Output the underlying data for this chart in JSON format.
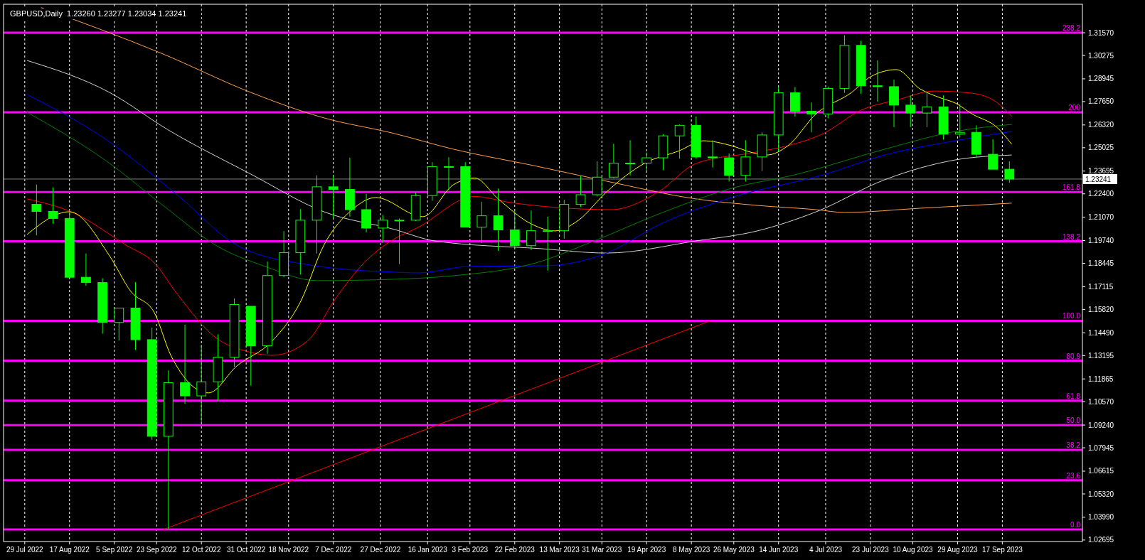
{
  "chart_data": {
    "type": "candlestick",
    "title": "GBPUSD,Daily  1.23260 1.23277 1.23034 1.23241",
    "xlim": [
      "2022-07-20",
      "2023-10-21"
    ],
    "xticks": [
      {
        "value": "2022-07-29",
        "label": "29 Jul 2022"
      },
      {
        "value": "2022-08-17",
        "label": "17 Aug 2022"
      },
      {
        "value": "2022-09-05",
        "label": "5 Sep 2022"
      },
      {
        "value": "2022-09-23",
        "label": "23 Sep 2022"
      },
      {
        "value": "2022-10-12",
        "label": "12 Oct 2022"
      },
      {
        "value": "2022-10-31",
        "label": "31 Oct 2022"
      },
      {
        "value": "2022-11-18",
        "label": "18 Nov 2022"
      },
      {
        "value": "2022-12-07",
        "label": "7 Dec 2022"
      },
      {
        "value": "2022-12-27",
        "label": "27 Dec 2022"
      },
      {
        "value": "2023-01-16",
        "label": "16 Jan 2023"
      },
      {
        "value": "2023-02-03",
        "label": "3 Feb 2023"
      },
      {
        "value": "2023-02-22",
        "label": "22 Feb 2023"
      },
      {
        "value": "2023-03-13",
        "label": "13 Mar 2023"
      },
      {
        "value": "2023-03-31",
        "label": "31 Mar 2023"
      },
      {
        "value": "2023-04-19",
        "label": "19 Apr 2023"
      },
      {
        "value": "2023-05-08",
        "label": "8 May 2023"
      },
      {
        "value": "2023-05-26",
        "label": "26 May 2023"
      },
      {
        "value": "2023-06-14",
        "label": "14 Jun 2023"
      },
      {
        "value": "2023-07-04",
        "label": "4 Jul 2023"
      },
      {
        "value": "2023-07-23",
        "label": "23 Jul 2023"
      },
      {
        "value": "2023-08-10",
        "label": "10 Aug 2023"
      },
      {
        "value": "2023-08-29",
        "label": "29 Aug 2023"
      },
      {
        "value": "2023-09-17",
        "label": "17 Sep 2023"
      }
    ],
    "ylim": [
      1.0261,
      1.3319
    ],
    "yticks": [
      {
        "value": 1.3157,
        "label": "1.31570"
      },
      {
        "value": 1.30275,
        "label": "1.30275"
      },
      {
        "value": 1.28945,
        "label": "1.28945"
      },
      {
        "value": 1.2765,
        "label": "1.27650"
      },
      {
        "value": 1.2632,
        "label": "1.26320"
      },
      {
        "value": 1.25025,
        "label": "1.25025"
      },
      {
        "value": 1.23695,
        "label": "1.23695"
      },
      {
        "value": 1.224,
        "label": "1.22400"
      },
      {
        "value": 1.2107,
        "label": "1.21070"
      },
      {
        "value": 1.1974,
        "label": "1.19740"
      },
      {
        "value": 1.18445,
        "label": "1.18445"
      },
      {
        "value": 1.17115,
        "label": "1.17115"
      },
      {
        "value": 1.1582,
        "label": "1.15820"
      },
      {
        "value": 1.1449,
        "label": "1.14490"
      },
      {
        "value": 1.13195,
        "label": "1.13195"
      },
      {
        "value": 1.11865,
        "label": "1.11865"
      },
      {
        "value": 1.1057,
        "label": "1.10570"
      },
      {
        "value": 1.0924,
        "label": "1.09240"
      },
      {
        "value": 1.07945,
        "label": "1.07945"
      },
      {
        "value": 1.06615,
        "label": "1.06615"
      },
      {
        "value": 1.0532,
        "label": "1.05320"
      },
      {
        "value": 1.0399,
        "label": "1.03990"
      },
      {
        "value": 1.02695,
        "label": "1.02695"
      }
    ],
    "grid": "x",
    "annotations": [
      {
        "text": "238.2",
        "x": "2023-10-21",
        "y": 1.3157
      },
      {
        "text": "200",
        "x": "2023-10-21",
        "y": 1.2704
      },
      {
        "text": "161.8",
        "x": "2023-10-21",
        "y": 1.225
      },
      {
        "text": "138.2",
        "x": "2023-10-21",
        "y": 1.197
      },
      {
        "text": "100.0",
        "x": "2023-10-21",
        "y": 1.1517
      },
      {
        "text": "80.9",
        "x": "2023-10-21",
        "y": 1.129
      },
      {
        "text": "61.8",
        "x": "2023-10-21",
        "y": 1.1063
      },
      {
        "text": "50.0",
        "x": "2023-10-21",
        "y": 1.0923
      },
      {
        "text": "38.2",
        "x": "2023-10-21",
        "y": 1.0783
      },
      {
        "text": "23.6",
        "x": "2023-10-21",
        "y": 1.061
      },
      {
        "text": "0.0",
        "x": "2023-10-21",
        "y": 1.033
      }
    ],
    "ref_lines": [
      {
        "axis": "y",
        "value": 1.3157,
        "color": "#ff00ff"
      },
      {
        "axis": "y",
        "value": 1.2704,
        "color": "#ff00ff"
      },
      {
        "axis": "y",
        "value": 1.225,
        "color": "#ff00ff"
      },
      {
        "axis": "y",
        "value": 1.197,
        "color": "#ff00ff"
      },
      {
        "axis": "y",
        "value": 1.1517,
        "color": "#ff00ff"
      },
      {
        "axis": "y",
        "value": 1.129,
        "color": "#ff00ff"
      },
      {
        "axis": "y",
        "value": 1.1063,
        "color": "#ff00ff"
      },
      {
        "axis": "y",
        "value": 1.0923,
        "color": "#ff00ff"
      },
      {
        "axis": "y",
        "value": 1.0783,
        "color": "#ff00ff"
      },
      {
        "axis": "y",
        "value": 1.061,
        "color": "#ff00ff"
      },
      {
        "axis": "y",
        "value": 1.033,
        "color": "#ff00ff"
      },
      {
        "axis": "y",
        "value": 1.23241,
        "label": "1.23241"
      }
    ],
    "series": [
      {
        "type": "line",
        "color": "#ffa050",
        "x": [
          "2022-08-05",
          "2022-09-25",
          "2022-11-02",
          "2022-12-02",
          "2023-01-02",
          "2023-01-27",
          "2023-03-02",
          "2023-04-02",
          "2023-05-10",
          "2023-06-05",
          "2023-06-30",
          "2023-07-12",
          "2023-08-13",
          "2023-09-21"
        ],
        "values": [
          1.33,
          1.304,
          1.2817,
          1.2676,
          1.2583,
          1.2494,
          1.2401,
          1.2312,
          1.2211,
          1.2174,
          1.215,
          1.2134,
          1.2158,
          1.2187
        ]
      },
      {
        "type": "line",
        "color": "#d3d3d3",
        "x": [
          "2022-07-30",
          "2022-09-03",
          "2022-09-28",
          "2022-11-02",
          "2022-12-03",
          "2023-01-02",
          "2023-01-19",
          "2023-03-05",
          "2023-04-02",
          "2023-05-10",
          "2023-06-05",
          "2023-06-30",
          "2023-07-29",
          "2023-08-28",
          "2023-09-21"
        ],
        "values": [
          1.2999,
          1.2817,
          1.2603,
          1.2352,
          1.2138,
          1.2037,
          1.1972,
          1.1928,
          1.1903,
          1.1972,
          1.2029,
          1.2138,
          1.232,
          1.2433,
          1.2461
        ]
      },
      {
        "type": "line",
        "color": "#0000ff",
        "x": [
          "2022-07-30",
          "2022-09-01",
          "2022-10-02",
          "2022-10-27",
          "2022-11-27",
          "2023-01-02",
          "2023-01-12",
          "2023-02-03",
          "2023-03-08",
          "2023-04-02",
          "2023-04-25",
          "2023-05-25",
          "2023-07-04",
          "2023-07-29",
          "2023-08-28",
          "2023-09-21"
        ],
        "values": [
          1.2805,
          1.2554,
          1.2231,
          1.1948,
          1.1835,
          1.1794,
          1.179,
          1.1827,
          1.1831,
          1.1903,
          1.2069,
          1.2219,
          1.2352,
          1.2461,
          1.2542,
          1.2595
        ]
      },
      {
        "type": "line",
        "color": "#008000",
        "x": [
          "2022-07-30",
          "2022-09-01",
          "2022-09-28",
          "2022-10-18",
          "2022-11-08",
          "2022-11-30",
          "2023-01-02",
          "2023-01-27",
          "2023-03-03",
          "2023-03-27",
          "2023-04-25",
          "2023-05-25",
          "2023-06-22",
          "2023-07-29",
          "2023-08-28",
          "2023-09-21"
        ],
        "values": [
          1.2704,
          1.2433,
          1.215,
          1.1948,
          1.1827,
          1.1746,
          1.1754,
          1.1774,
          1.1847,
          1.1968,
          1.213,
          1.2271,
          1.2352,
          1.2494,
          1.2595,
          1.2635
        ]
      },
      {
        "type": "line",
        "color": "#ff0000",
        "x": [
          "2022-07-30",
          "2022-08-19",
          "2022-09-10",
          "2022-09-22",
          "2022-10-02",
          "2022-10-18",
          "2022-11-01",
          "2022-11-11",
          "2022-11-26",
          "2022-12-08",
          "2022-12-20",
          "2022-12-31",
          "2023-01-12",
          "2023-02-05",
          "2023-02-20",
          "2023-03-12",
          "2023-04-04",
          "2023-04-24",
          "2023-05-10",
          "2023-06-03",
          "2023-06-18",
          "2023-07-03",
          "2023-07-19",
          "2023-08-04",
          "2023-08-19",
          "2023-09-04",
          "2023-09-15",
          "2023-09-21"
        ],
        "values": [
          1.2211,
          1.213,
          1.1948,
          1.1847,
          1.1665,
          1.1422,
          1.1341,
          1.1321,
          1.1402,
          1.1645,
          1.1847,
          1.1968,
          1.2049,
          1.2225,
          1.2191,
          1.2162,
          1.215,
          1.2251,
          1.2413,
          1.2474,
          1.2514,
          1.2583,
          1.2716,
          1.2777,
          1.2825,
          1.2813,
          1.2757,
          1.268
        ]
      },
      {
        "type": "line",
        "color": "#ffff00",
        "x": [
          "2022-07-30",
          "2022-08-17",
          "2022-09-03",
          "2022-09-12",
          "2022-09-22",
          "2022-09-29",
          "2022-10-15",
          "2022-10-27",
          "2022-11-11",
          "2022-11-23",
          "2022-12-03",
          "2022-12-15",
          "2022-12-25",
          "2023-01-14",
          "2023-01-27",
          "2023-02-05",
          "2023-02-15",
          "2023-03-01",
          "2023-03-11",
          "2023-03-21",
          "2023-04-02",
          "2023-04-18",
          "2023-05-03",
          "2023-05-13",
          "2023-05-25",
          "2023-06-03",
          "2023-06-09",
          "2023-06-18",
          "2023-06-30",
          "2023-07-15",
          "2023-07-23",
          "2023-08-03",
          "2023-08-13",
          "2023-08-22",
          "2023-08-28",
          "2023-09-04",
          "2023-09-15",
          "2023-09-21"
        ],
        "values": [
          1.2009,
          1.2138,
          1.1887,
          1.1685,
          1.1564,
          1.1321,
          1.1107,
          1.126,
          1.1402,
          1.1624,
          1.1948,
          1.215,
          1.2219,
          1.211,
          1.2292,
          1.233,
          1.2211,
          1.2069,
          1.2029,
          1.2089,
          1.2251,
          1.2413,
          1.2486,
          1.2542,
          1.2514,
          1.2474,
          1.2461,
          1.2514,
          1.2696,
          1.2817,
          1.2906,
          1.2947,
          1.2838,
          1.2785,
          1.2757,
          1.2696,
          1.2615,
          1.2522
        ]
      },
      {
        "type": "line",
        "color": "#ff0000",
        "x": [
          "2022-09-26",
          "2023-05-16"
        ],
        "values": [
          1.033,
          1.1517
        ]
      },
      {
        "color": "#00ff00",
        "x": [
          "2022-08-03",
          "2022-08-10",
          "2022-08-17",
          "2022-08-24",
          "2022-08-31",
          "2022-09-07",
          "2022-09-14",
          "2022-09-21",
          "2022-09-28",
          "2022-10-05",
          "2022-10-12",
          "2022-10-19",
          "2022-10-26",
          "2022-11-02",
          "2022-11-09",
          "2022-11-16",
          "2022-11-23",
          "2022-11-30",
          "2022-12-07",
          "2022-12-14",
          "2022-12-21",
          "2022-12-28",
          "2023-01-04",
          "2023-01-11",
          "2023-01-18",
          "2023-01-25",
          "2023-02-01",
          "2023-02-08",
          "2023-02-15",
          "2023-02-22",
          "2023-03-01",
          "2023-03-08",
          "2023-03-15",
          "2023-03-22",
          "2023-03-29",
          "2023-04-05",
          "2023-04-12",
          "2023-04-19",
          "2023-04-26",
          "2023-05-03",
          "2023-05-10",
          "2023-05-17",
          "2023-05-24",
          "2023-05-31",
          "2023-06-07",
          "2023-06-14",
          "2023-06-21",
          "2023-06-28",
          "2023-07-05",
          "2023-07-12",
          "2023-07-19",
          "2023-07-26",
          "2023-08-02",
          "2023-08-09",
          "2023-08-16",
          "2023-08-23",
          "2023-08-30",
          "2023-09-06",
          "2023-09-13",
          "2023-09-20"
        ],
        "ohlc": [
          [
            1.218,
            1.2293,
            1.2004,
            1.214
          ],
          [
            1.214,
            1.2277,
            1.207,
            1.21
          ],
          [
            1.21,
            1.214,
            1.176,
            1.1765
          ],
          [
            1.1765,
            1.19,
            1.1717,
            1.1735
          ],
          [
            1.1735,
            1.176,
            1.1444,
            1.1508
          ],
          [
            1.1508,
            1.159,
            1.1405,
            1.159
          ],
          [
            1.159,
            1.1738,
            1.1351,
            1.141
          ],
          [
            1.141,
            1.1478,
            1.084,
            1.086
          ],
          [
            1.086,
            1.1235,
            1.033,
            1.1165
          ],
          [
            1.1165,
            1.1495,
            1.1045,
            1.109
          ],
          [
            1.109,
            1.138,
            1.094,
            1.117
          ],
          [
            1.117,
            1.144,
            1.106,
            1.131
          ],
          [
            1.131,
            1.1645,
            1.1256,
            1.161
          ],
          [
            1.16,
            1.16,
            1.1148,
            1.1375
          ],
          [
            1.1375,
            1.1855,
            1.133,
            1.1775
          ],
          [
            1.1775,
            1.2028,
            1.1765,
            1.1905
          ],
          [
            1.1905,
            1.2153,
            1.178,
            1.209
          ],
          [
            1.209,
            1.2345,
            1.19,
            1.228
          ],
          [
            1.228,
            1.2345,
            1.2105,
            1.2265
          ],
          [
            1.2265,
            1.2446,
            1.211,
            1.215
          ],
          [
            1.215,
            1.224,
            1.202,
            1.2045
          ],
          [
            1.2045,
            1.212,
            1.196,
            1.209
          ],
          [
            1.209,
            1.21,
            1.184,
            1.209
          ],
          [
            1.209,
            1.2248,
            1.2085,
            1.223
          ],
          [
            1.223,
            1.242,
            1.22,
            1.2395
          ],
          [
            1.2395,
            1.2448,
            1.226,
            1.2395
          ],
          [
            1.2395,
            1.242,
            1.205,
            1.205
          ],
          [
            1.205,
            1.2195,
            1.196,
            1.2115
          ],
          [
            1.2115,
            1.227,
            1.1915,
            1.2035
          ],
          [
            1.2035,
            1.2145,
            1.1925,
            1.1945
          ],
          [
            1.1945,
            1.2145,
            1.192,
            1.203
          ],
          [
            1.203,
            1.211,
            1.1803,
            1.203
          ],
          [
            1.203,
            1.2205,
            1.1985,
            1.218
          ],
          [
            1.218,
            1.2343,
            1.2165,
            1.2235
          ],
          [
            1.2235,
            1.2425,
            1.2225,
            1.2335
          ],
          [
            1.2335,
            1.2525,
            1.233,
            1.2415
          ],
          [
            1.2415,
            1.2545,
            1.2345,
            1.2415
          ],
          [
            1.2415,
            1.2475,
            1.2365,
            1.2445
          ],
          [
            1.2445,
            1.258,
            1.2375,
            1.257
          ],
          [
            1.257,
            1.2635,
            1.244,
            1.263
          ],
          [
            1.263,
            1.268,
            1.244,
            1.245
          ],
          [
            1.245,
            1.2545,
            1.239,
            1.2445
          ],
          [
            1.2445,
            1.247,
            1.231,
            1.2345
          ],
          [
            1.2345,
            1.2545,
            1.231,
            1.245
          ],
          [
            1.245,
            1.259,
            1.237,
            1.2575
          ],
          [
            1.2575,
            1.2848,
            1.248,
            1.2815
          ],
          [
            1.2815,
            1.2848,
            1.268,
            1.271
          ],
          [
            1.271,
            1.276,
            1.259,
            1.2695
          ],
          [
            1.2695,
            1.285,
            1.267,
            1.284
          ],
          [
            1.284,
            1.3143,
            1.2815,
            1.3085
          ],
          [
            1.3085,
            1.311,
            1.281,
            1.2855
          ],
          [
            1.2855,
            1.3,
            1.2765,
            1.285
          ],
          [
            1.285,
            1.289,
            1.262,
            1.2745
          ],
          [
            1.2745,
            1.28,
            1.262,
            1.27
          ],
          [
            1.27,
            1.2815,
            1.262,
            1.2735
          ],
          [
            1.2735,
            1.28,
            1.2548,
            1.258
          ],
          [
            1.258,
            1.275,
            1.256,
            1.259
          ],
          [
            1.259,
            1.263,
            1.2445,
            1.2465
          ],
          [
            1.2465,
            1.255,
            1.238,
            1.238
          ],
          [
            1.238,
            1.2425,
            1.2303,
            1.23241
          ]
        ]
      }
    ]
  }
}
